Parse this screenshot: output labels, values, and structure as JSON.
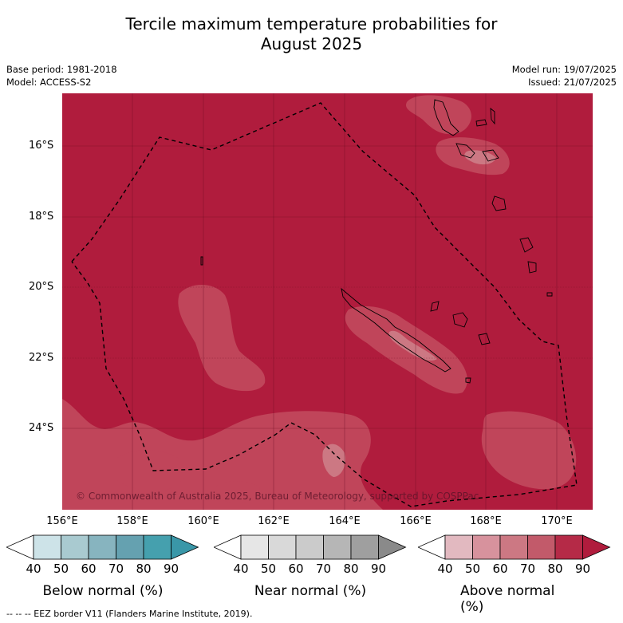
{
  "title_line1": "Tercile maximum temperature probabilities for",
  "title_line2": "August 2025",
  "base_period": "Base period: 1981-2018",
  "model": "Model: ACCESS-S2",
  "model_run": "Model run: 19/07/2025",
  "issued": "Issued: 21/07/2025",
  "credit": "© Commonwealth of Australia 2025, Bureau of Meteorology, supported by COSPPac",
  "lat_ticks": [
    "16°S",
    "18°S",
    "20°S",
    "22°S",
    "24°S"
  ],
  "lon_ticks": [
    "156°E",
    "158°E",
    "160°E",
    "162°E",
    "164°E",
    "166°E",
    "168°E",
    "170°E"
  ],
  "colorbars": [
    {
      "label": "Below normal (%)",
      "ticks": [
        "40",
        "50",
        "60",
        "70",
        "80",
        "90"
      ],
      "colors": [
        "#ffffff",
        "#cde3e8",
        "#a9cad0",
        "#87b4bf",
        "#65a1b0",
        "#45a0ae",
        "#3a97a8"
      ]
    },
    {
      "label": "Near normal (%)",
      "ticks": [
        "40",
        "50",
        "60",
        "70",
        "80",
        "90"
      ],
      "colors": [
        "#ffffff",
        "#e6e6e6",
        "#d9d9d9",
        "#cbcbcb",
        "#b6b6b6",
        "#9f9f9f",
        "#8a8a8a"
      ]
    },
    {
      "label": "Above normal (%)",
      "ticks": [
        "40",
        "50",
        "60",
        "70",
        "80",
        "90"
      ],
      "colors": [
        "#ffffff",
        "#e2b9c0",
        "#d7929d",
        "#cc7883",
        "#c25a6a",
        "#b52a47",
        "#b01c3d"
      ]
    }
  ],
  "legend_text": "--  --  -- EEZ border V11 (Flanders Marine Institute, 2019).",
  "colors": {
    "above_80": "#b01c3d",
    "above_70": "#c0455a",
    "above_60": "#cc7883"
  }
}
